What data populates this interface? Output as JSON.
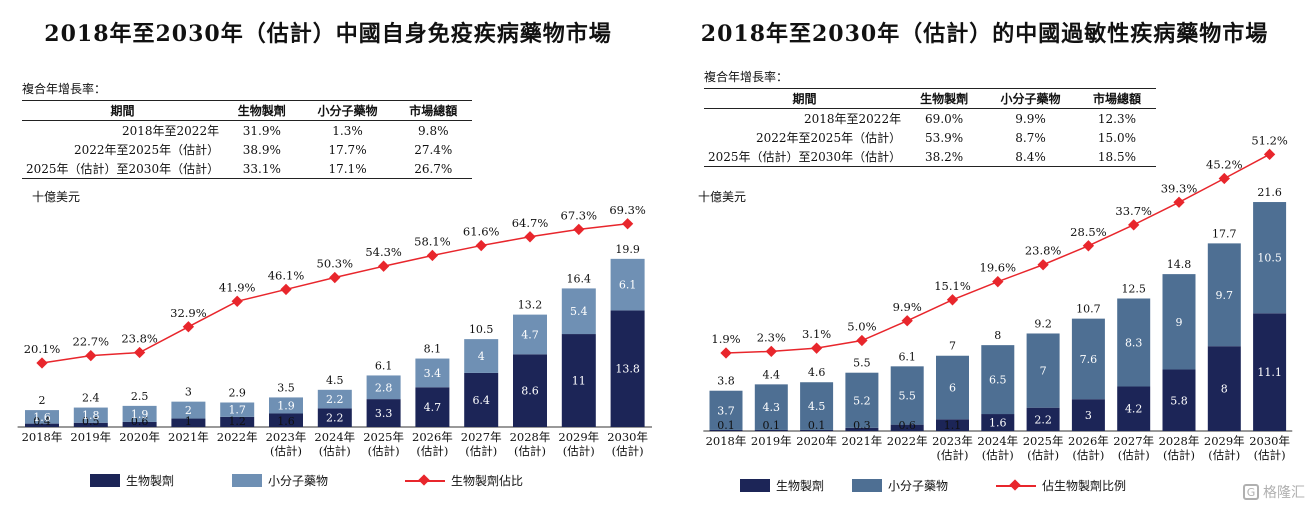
{
  "colors": {
    "dark": "#1c2557",
    "light": "#6f90b4",
    "light_right": "#4e6f93",
    "line": "#e8262c"
  },
  "chart_data": [
    {
      "type": "bar",
      "title": "2018年至2030年（估計）中國自身免疫疾病藥物市場",
      "unit_label": "十億美元",
      "cagr_label": "複合年增長率：",
      "cagr_headers": [
        "期間",
        "生物製劑",
        "小分子藥物",
        "市場總額"
      ],
      "cagr_rows": [
        [
          "2018年至2022年",
          "31.9%",
          "1.3%",
          "9.8%"
        ],
        [
          "2022年至2025年（估計）",
          "38.9%",
          "17.7%",
          "27.4%"
        ],
        [
          "2025年（估計）至2030年（估計）",
          "33.1%",
          "17.1%",
          "26.7%"
        ]
      ],
      "categories": [
        "2018年",
        "2019年",
        "2020年",
        "2021年",
        "2022年",
        "2023年",
        "2024年",
        "2025年",
        "2026年",
        "2027年",
        "2028年",
        "2029年",
        "2030年"
      ],
      "category_sub": [
        "",
        "",
        "",
        "",
        "",
        "(估計)",
        "(估計)",
        "(估計)",
        "(估計)",
        "(估計)",
        "(估計)",
        "(估計)",
        "(估計)"
      ],
      "series": [
        {
          "name": "生物製劑",
          "values": [
            0.4,
            0.5,
            0.6,
            1.0,
            1.2,
            1.6,
            2.2,
            3.3,
            4.7,
            6.4,
            8.6,
            11.0,
            13.8
          ]
        },
        {
          "name": "小分子藥物",
          "values": [
            1.6,
            1.8,
            1.9,
            2.0,
            1.7,
            1.9,
            2.2,
            2.8,
            3.4,
            4.0,
            4.7,
            5.4,
            6.1
          ]
        }
      ],
      "totals": [
        2.0,
        2.4,
        2.5,
        3.0,
        2.9,
        3.5,
        4.5,
        6.1,
        8.1,
        10.5,
        13.2,
        16.4,
        19.9
      ],
      "line": {
        "name": "生物製劑佔比",
        "values": [
          20.1,
          22.7,
          23.8,
          32.9,
          41.9,
          46.1,
          50.3,
          54.3,
          58.1,
          61.6,
          64.7,
          67.3,
          69.3
        ],
        "labels": [
          "20.1%",
          "22.7%",
          "23.8%",
          "32.9%",
          "41.9%",
          "46.1%",
          "50.3%",
          "54.3%",
          "58.1%",
          "61.6%",
          "64.7%",
          "67.3%",
          "69.3%"
        ]
      }
    },
    {
      "type": "bar",
      "title": "2018年至2030年（估計）的中國過敏性疾病藥物市場",
      "unit_label": "十億美元",
      "cagr_label": "複合年增長率：",
      "cagr_headers": [
        "期間",
        "生物製劑",
        "小分子藥物",
        "市場總額"
      ],
      "cagr_rows": [
        [
          "2018年至2022年",
          "69.0%",
          "9.9%",
          "12.3%"
        ],
        [
          "2022年至2025年（估計）",
          "53.9%",
          "8.7%",
          "15.0%"
        ],
        [
          "2025年（估計）至2030年（估計）",
          "38.2%",
          "8.4%",
          "18.5%"
        ]
      ],
      "categories": [
        "2018年",
        "2019年",
        "2020年",
        "2021年",
        "2022年",
        "2023年",
        "2024年",
        "2025年",
        "2026年",
        "2027年",
        "2028年",
        "2029年",
        "2030年"
      ],
      "category_sub": [
        "",
        "",
        "",
        "",
        "",
        "(估計)",
        "(估計)",
        "(估計)",
        "(估計)",
        "(估計)",
        "(估計)",
        "(估計)",
        "(估計)"
      ],
      "series": [
        {
          "name": "生物製劑",
          "values": [
            0.1,
            0.1,
            0.1,
            0.3,
            0.6,
            1.1,
            1.6,
            2.2,
            3.0,
            4.2,
            5.8,
            8.0,
            11.1
          ]
        },
        {
          "name": "小分子藥物",
          "values": [
            3.7,
            4.3,
            4.5,
            5.2,
            5.5,
            6.0,
            6.5,
            7.0,
            7.6,
            8.3,
            9.0,
            9.7,
            10.5
          ]
        }
      ],
      "totals": [
        3.8,
        4.4,
        4.6,
        5.5,
        6.1,
        7.0,
        8.0,
        9.2,
        10.7,
        12.5,
        14.8,
        17.7,
        21.6
      ],
      "line": {
        "name": "佔生物製劑比例",
        "values": [
          1.9,
          2.3,
          3.1,
          5.0,
          9.9,
          15.1,
          19.6,
          23.8,
          28.5,
          33.7,
          39.3,
          45.2,
          51.2
        ],
        "labels": [
          "1.9%",
          "2.3%",
          "3.1%",
          "5.0%",
          "9.9%",
          "15.1%",
          "19.6%",
          "23.8%",
          "28.5%",
          "33.7%",
          "39.3%",
          "45.2%",
          "51.2%"
        ]
      }
    }
  ],
  "watermark": {
    "logo_char": "G",
    "text": "格隆汇"
  }
}
